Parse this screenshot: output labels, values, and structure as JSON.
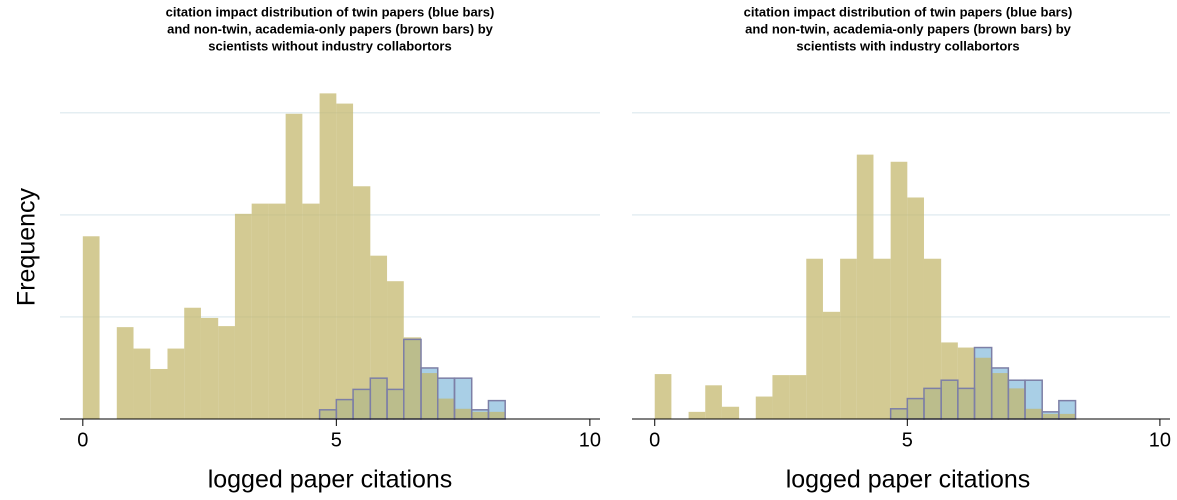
{
  "chart_data": [
    {
      "type": "histogram",
      "title": [
        "citation impact distribution of twin papers (blue bars)",
        "and non-twin, academia-only papers (brown bars) by",
        "scientists without industry collabortors"
      ],
      "ylabel": "Frequency",
      "xlabel": "logged paper citations",
      "bins": [
        0,
        0.33,
        0.67,
        1,
        1.33,
        1.67,
        2,
        2.33,
        2.67,
        3,
        3.33,
        3.67,
        4,
        4.33,
        4.67,
        5,
        5.33,
        5.67,
        6,
        6.33,
        6.67,
        7,
        7.33,
        7.67,
        8,
        8.33
      ],
      "series": [
        {
          "color": "#a9cfe6",
          "values": [
            0,
            0,
            0,
            0,
            0,
            0,
            0,
            0,
            0,
            0,
            0,
            0,
            0,
            0,
            0.09,
            0.19,
            0.29,
            0.4,
            0.29,
            0.78,
            0.5,
            0.4,
            0.4,
            0.09,
            0.18
          ]
        },
        {
          "color": "#c2b56a",
          "values": [
            1.79,
            0,
            0.9,
            0.69,
            0.49,
            0.69,
            1.09,
            0.99,
            0.91,
            2.01,
            2.11,
            2.11,
            2.99,
            2.11,
            3.19,
            3.09,
            2.28,
            1.6,
            1.35,
            0.8,
            0.45,
            0.2,
            0.1,
            0.07,
            0.07
          ]
        }
      ],
      "xlim": [
        -0.45,
        10.2
      ],
      "xticks": [
        0,
        5,
        10
      ],
      "ylim": [
        0,
        3.37
      ],
      "yticks": [
        1,
        2,
        3
      ],
      "grid": true
    },
    {
      "type": "histogram",
      "title": [
        "citation impact distribution of twin papers (blue bars)",
        "and non-twin, academia-only papers (brown bars) by",
        "scientists with industry collabortors"
      ],
      "xlabel": "logged paper citations",
      "bins": [
        0,
        0.33,
        0.67,
        1,
        1.33,
        1.67,
        2,
        2.33,
        2.67,
        3,
        3.33,
        3.67,
        4,
        4.33,
        4.67,
        5,
        5.33,
        5.67,
        6,
        6.33,
        6.67,
        7,
        7.33,
        7.67,
        8,
        8.33
      ],
      "series": [
        {
          "color": "#a9cfe6",
          "values": [
            0,
            0,
            0,
            0,
            0,
            0,
            0,
            0,
            0,
            0,
            0,
            0,
            0,
            0,
            0.1,
            0.2,
            0.3,
            0.38,
            0.3,
            0.7,
            0.5,
            0.38,
            0.38,
            0.07,
            0.18
          ]
        },
        {
          "color": "#c2b56a",
          "values": [
            0.44,
            0,
            0.07,
            0.33,
            0.12,
            0,
            0.22,
            0.43,
            0.43,
            1.57,
            1.05,
            1.57,
            2.59,
            1.57,
            2.52,
            2.17,
            1.57,
            0.75,
            0.7,
            0.6,
            0.45,
            0.3,
            0.1,
            0.05,
            0.05
          ]
        }
      ],
      "xlim": [
        -0.45,
        10.2
      ],
      "xticks": [
        0,
        5,
        10
      ],
      "ylim": [
        0,
        3.37
      ],
      "yticks": [
        1,
        2,
        3
      ],
      "grid": true
    }
  ]
}
